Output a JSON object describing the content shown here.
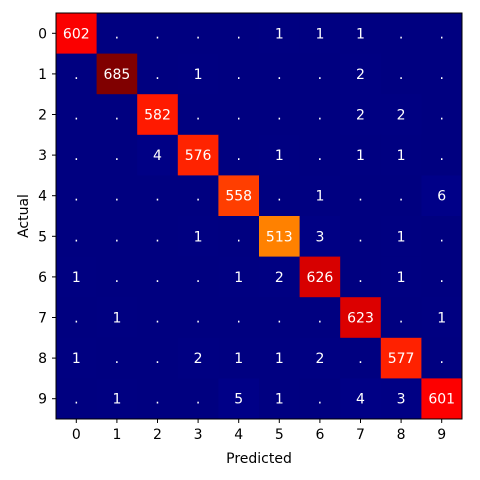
{
  "chart_data": {
    "type": "heatmap",
    "title": "",
    "xlabel": "Predicted",
    "ylabel": "Actual",
    "x_categories": [
      "0",
      "1",
      "2",
      "3",
      "4",
      "5",
      "6",
      "7",
      "8",
      "9"
    ],
    "y_categories": [
      "0",
      "1",
      "2",
      "3",
      "4",
      "5",
      "6",
      "7",
      "8",
      "9"
    ],
    "matrix": [
      [
        602,
        0,
        0,
        0,
        0,
        1,
        1,
        1,
        0,
        0
      ],
      [
        0,
        685,
        0,
        1,
        0,
        0,
        0,
        2,
        0,
        0
      ],
      [
        0,
        0,
        582,
        0,
        0,
        0,
        0,
        2,
        2,
        0
      ],
      [
        0,
        0,
        4,
        576,
        0,
        1,
        0,
        1,
        1,
        0
      ],
      [
        0,
        0,
        0,
        0,
        558,
        0,
        1,
        0,
        0,
        6
      ],
      [
        0,
        0,
        0,
        1,
        0,
        513,
        3,
        0,
        1,
        0
      ],
      [
        1,
        0,
        0,
        0,
        1,
        2,
        626,
        0,
        1,
        0
      ],
      [
        0,
        1,
        0,
        0,
        0,
        0,
        0,
        623,
        0,
        1
      ],
      [
        1,
        0,
        0,
        2,
        1,
        1,
        2,
        0,
        577,
        0
      ],
      [
        0,
        1,
        0,
        0,
        5,
        1,
        0,
        4,
        3,
        601
      ]
    ],
    "zero_label": ".",
    "colormap": "jet",
    "value_range": [
      0,
      685
    ],
    "grid": false,
    "legend": "none"
  }
}
